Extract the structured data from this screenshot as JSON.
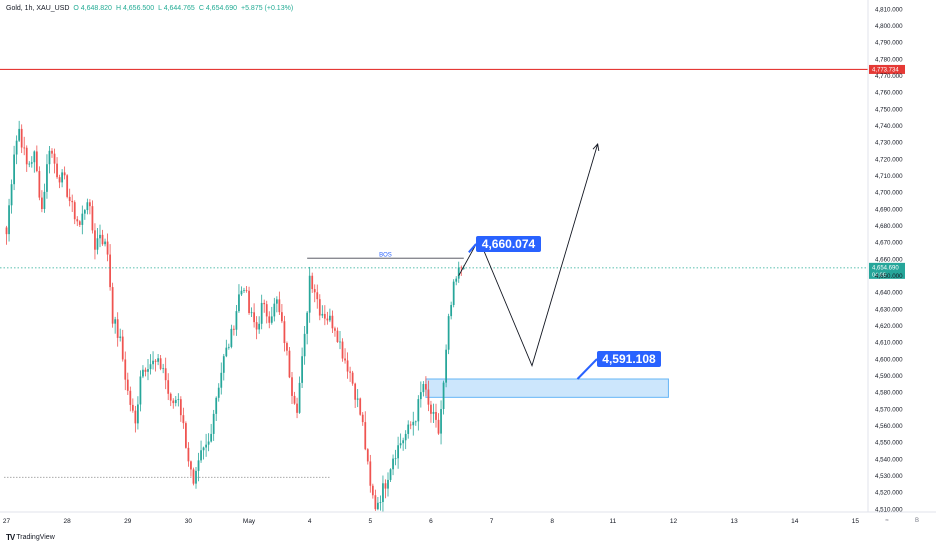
{
  "header": {
    "symbol": "Gold, 1h, XAU_USD",
    "open": "O 4,648.820",
    "high": "H 4,656.500",
    "low": "L 4,644.765",
    "close": "C 4,654.690",
    "change": "+5.875 (+0.13%)"
  },
  "footer": {
    "logo": "TV",
    "brand": "TradingView"
  },
  "corner_buttons": {
    "left": "≈",
    "right": "B"
  },
  "colors": {
    "up": "#26a69a",
    "down": "#ef5350",
    "resistance": "#e53935",
    "label_blue": "#2962ff",
    "zone_fill": "#bbdefb",
    "zone_border": "#64b5f6",
    "grid": "#f0f3fa",
    "axis_text": "#131722",
    "price_dot": "#22ab94"
  },
  "chart_data": {
    "type": "candlestick",
    "title": "Gold, 1h, XAU_USD",
    "ylim": [
      4505,
      4815
    ],
    "y_ticks": [
      4510,
      4520,
      4530,
      4540,
      4550,
      4560,
      4570,
      4580,
      4590,
      4600,
      4610,
      4620,
      4630,
      4640,
      4650,
      4660,
      4670,
      4680,
      4690,
      4700,
      4710,
      4720,
      4730,
      4740,
      4750,
      4760,
      4770,
      4780,
      4790,
      4800,
      4810
    ],
    "y_tick_labels": [
      "4,510.000",
      "4,520.000",
      "4,530.000",
      "4,540.000",
      "4,550.000",
      "4,560.000",
      "4,570.000",
      "4,580.000",
      "4,590.000",
      "4,600.000",
      "4,610.000",
      "4,620.000",
      "4,630.000",
      "4,640.000",
      "4,650.000",
      "4,660.000",
      "4,670.000",
      "4,680.000",
      "4,690.000",
      "4,700.000",
      "4,710.000",
      "4,720.000",
      "4,730.000",
      "4,740.000",
      "4,750.000",
      "4,760.000",
      "4,770.000",
      "4,780.000",
      "4,790.000",
      "4,800.000",
      "4,810.000"
    ],
    "x_labels": [
      "27",
      "28",
      "29",
      "30",
      "May",
      "4",
      "5",
      "6",
      "7",
      "8",
      "11",
      "12",
      "13",
      "14",
      "15"
    ],
    "x_label_index": [
      0,
      24,
      48,
      72,
      96,
      120,
      144,
      168,
      192,
      216,
      240,
      264,
      288,
      312,
      336
    ],
    "index_end": 341,
    "resistance": {
      "price": 4773.734,
      "label": "4,773.734"
    },
    "current_price": {
      "price": 4654.69,
      "label": "4,654.690",
      "countdown": "04:08"
    },
    "support_line": {
      "price": 4529,
      "index_start": -1,
      "index_end": 128
    },
    "bos": {
      "label": "BOS",
      "price": 4660.5,
      "index_start": 119,
      "index_end": 181
    },
    "target_high": {
      "label": "4,660.074",
      "price": 4660.074
    },
    "demand_zone": {
      "label": "4,591.108",
      "price_top": 4588,
      "price_bottom": 4577,
      "index_start": 166,
      "index_end": 262
    },
    "projection": [
      {
        "i": 179,
        "p": 4650
      },
      {
        "i": 187,
        "p": 4672
      },
      {
        "i": 208,
        "p": 4596
      },
      {
        "i": 234,
        "p": 4729
      }
    ],
    "waypoints": [
      [
        0,
        4675
      ],
      [
        3,
        4725
      ],
      [
        5,
        4738
      ],
      [
        8,
        4716
      ],
      [
        11,
        4722
      ],
      [
        14,
        4690
      ],
      [
        17,
        4728
      ],
      [
        20,
        4712
      ],
      [
        23,
        4706
      ],
      [
        26,
        4690
      ],
      [
        29,
        4680
      ],
      [
        32,
        4697
      ],
      [
        35,
        4668
      ],
      [
        37,
        4676
      ],
      [
        40,
        4664
      ],
      [
        42,
        4625
      ],
      [
        45,
        4610
      ],
      [
        48,
        4580
      ],
      [
        51,
        4560
      ],
      [
        53,
        4592
      ],
      [
        56,
        4598
      ],
      [
        59,
        4597
      ],
      [
        62,
        4595
      ],
      [
        65,
        4572
      ],
      [
        68,
        4578
      ],
      [
        71,
        4550
      ],
      [
        74,
        4522
      ],
      [
        77,
        4542
      ],
      [
        80,
        4550
      ],
      [
        83,
        4578
      ],
      [
        86,
        4600
      ],
      [
        89,
        4614
      ],
      [
        92,
        4638
      ],
      [
        94,
        4645
      ],
      [
        96,
        4628
      ],
      [
        99,
        4618
      ],
      [
        101,
        4631
      ],
      [
        104,
        4626
      ],
      [
        107,
        4634
      ],
      [
        110,
        4612
      ],
      [
        113,
        4582
      ],
      [
        115,
        4572
      ],
      [
        118,
        4612
      ],
      [
        120,
        4650
      ],
      [
        122,
        4642
      ],
      [
        124,
        4630
      ],
      [
        127,
        4625
      ],
      [
        130,
        4620
      ],
      [
        133,
        4604
      ],
      [
        136,
        4592
      ],
      [
        139,
        4574
      ],
      [
        141,
        4560
      ],
      [
        144,
        4522
      ],
      [
        146,
        4512
      ],
      [
        148,
        4518
      ],
      [
        150,
        4526
      ],
      [
        153,
        4542
      ],
      [
        156,
        4550
      ],
      [
        159,
        4557
      ],
      [
        162,
        4566
      ],
      [
        165,
        4585
      ],
      [
        167,
        4571
      ],
      [
        169,
        4564
      ],
      [
        171,
        4556
      ],
      [
        173,
        4584
      ],
      [
        175,
        4622
      ],
      [
        177,
        4642
      ],
      [
        179,
        4652
      ],
      [
        181,
        4658
      ]
    ]
  }
}
